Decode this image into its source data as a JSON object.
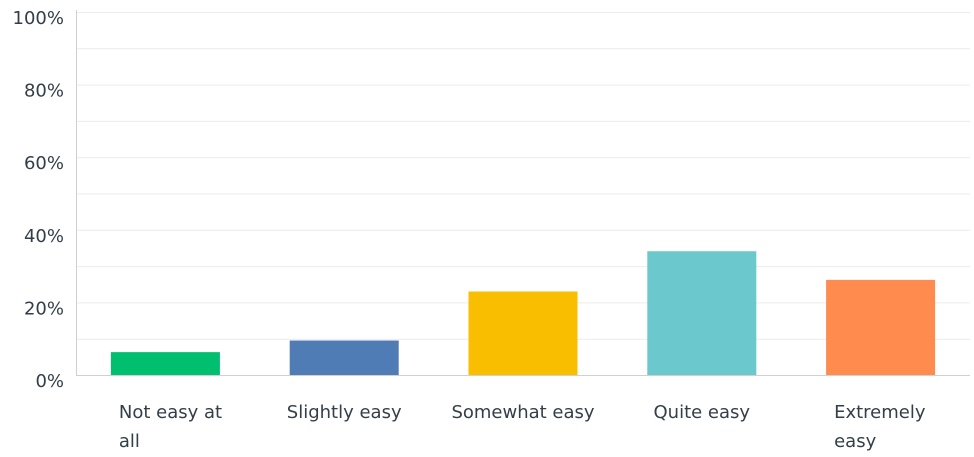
{
  "chart_data": {
    "type": "bar",
    "categories": [
      "Not easy at all",
      "Slightly easy",
      "Somewhat easy",
      "Quite easy",
      "Extremely easy"
    ],
    "category_lines": [
      [
        "Not easy at",
        "all"
      ],
      [
        "Slightly easy"
      ],
      [
        "Somewhat easy"
      ],
      [
        "Quite easy"
      ],
      [
        "Extremely",
        "easy"
      ]
    ],
    "values": [
      6.3,
      9.5,
      23.0,
      34.1,
      26.2
    ],
    "colors": [
      "#00bf6f",
      "#507cb6",
      "#f9be00",
      "#6bc8cd",
      "#ff8b4f"
    ],
    "ylim": [
      0,
      100
    ],
    "yticks": [
      0,
      20,
      40,
      60,
      80,
      100
    ],
    "ytick_labels": [
      "0%",
      "20%",
      "40%",
      "60%",
      "80%",
      "100%"
    ],
    "grid": true,
    "grid_color": "#ececec",
    "axis_color": "#d0d0d0",
    "title": "",
    "xlabel": "",
    "ylabel": ""
  }
}
